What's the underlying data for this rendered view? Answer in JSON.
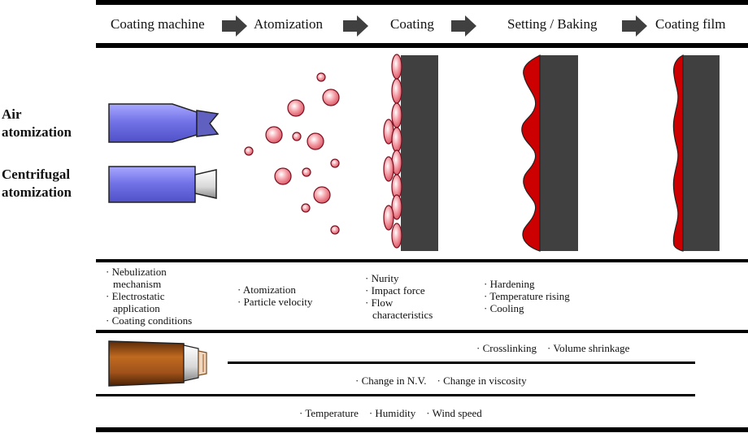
{
  "headers": [
    "Coating machine",
    "Atomization",
    "Coating",
    "Setting / Baking",
    "Coating film"
  ],
  "side_labels": {
    "air": [
      "Air",
      "atomization"
    ],
    "centrifugal": [
      "Centrifugal",
      "atomization"
    ]
  },
  "factors": {
    "machine": [
      "· Nebulization",
      "mechanism",
      "· Electrostatic",
      "application",
      "· Coating conditions"
    ],
    "atomization": [
      "· Atomization",
      "· Particle velocity"
    ],
    "coating": [
      "· Nurity",
      "· Impact force",
      "· Flow",
      "characteristics"
    ],
    "setting": [
      "· Hardening",
      "· Temperature rising",
      "· Cooling"
    ]
  },
  "bottom_rows": {
    "row1": "· Crosslinking    · Volume shrinkage",
    "row2": "· Change in N.V.    · Change in viscosity",
    "row3": "· Temperature    · Humidity    · Wind speed"
  },
  "colors": {
    "gun_blue": "#8080ee",
    "gun_brown": "#a0521a",
    "droplet": "#f4a0a8",
    "substrate": "#404040",
    "film": "#cc0000",
    "arrow": "#404040"
  },
  "icons": [
    "right-arrow-icon",
    "air-spray-gun-icon",
    "centrifugal-bell-gun-icon",
    "paint-can-icon"
  ]
}
